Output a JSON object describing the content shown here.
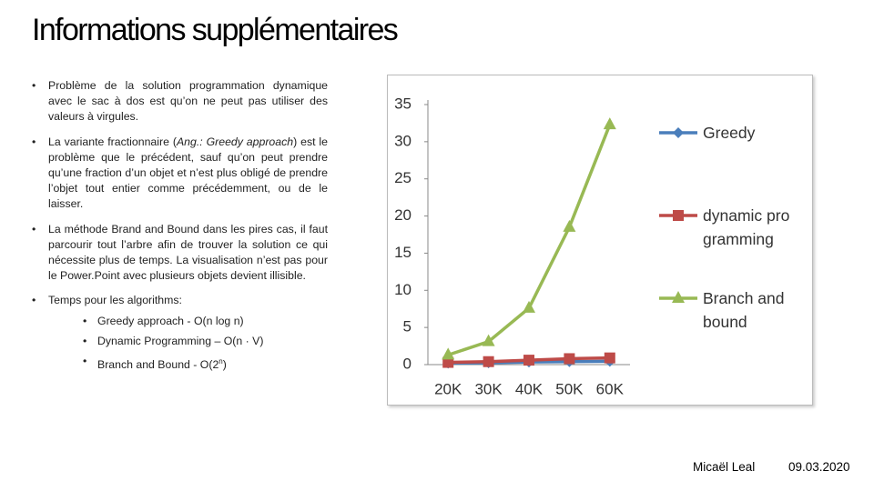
{
  "title": "Informations supplémentaires",
  "bullets": [
    {
      "text": "Problème de la solution programmation dynamique avec le sac à dos est qu’on ne peut pas utiliser des valeurs à virgules."
    },
    {
      "parts": [
        "La variante fractionnaire (",
        "Ang.: Greedy approach",
        ") est le problème que le précédent, sauf qu’on peut prendre qu’une fraction d’un objet et n’est plus obligé de prendre l’objet tout entier comme précédemment, ou de le laisser."
      ]
    },
    {
      "text": "La méthode Brand and Bound dans les pires cas, il faut parcourir tout l’arbre afin de trouver la solution ce qui nécessite plus de temps. La visualisation n’est pas pour le Power.Point avec plusieurs objets devient illisible."
    },
    {
      "text": "Temps pour les algorithms:",
      "sub": [
        {
          "text": "Greedy approach - O(n log n)"
        },
        {
          "text": "Dynamic Programming – O(n · V)"
        },
        {
          "text": "Branch and Bound - O(2",
          "sup": "n",
          "tail": ")"
        }
      ]
    }
  ],
  "chart_data": {
    "type": "line",
    "categories": [
      "20K",
      "30K",
      "40K",
      "50K",
      "60K"
    ],
    "series": [
      {
        "name": "Greedy",
        "color": "#4a7ebb",
        "marker": "diamond",
        "values": [
          0.2,
          0.25,
          0.35,
          0.4,
          0.45
        ]
      },
      {
        "name": "dynamic programming",
        "color": "#be4b48",
        "marker": "square",
        "values": [
          0.3,
          0.4,
          0.6,
          0.8,
          0.9
        ]
      },
      {
        "name": "Branch and bound",
        "color": "#98b954",
        "marker": "triangle",
        "values": [
          1.3,
          3.1,
          7.6,
          18.5,
          32.3
        ]
      }
    ],
    "ylim": [
      0,
      35
    ],
    "yticks": [
      0,
      5,
      10,
      15,
      20,
      25,
      30,
      35
    ]
  },
  "footer": {
    "author": "Micaël Leal",
    "date": "09.03.2020"
  }
}
